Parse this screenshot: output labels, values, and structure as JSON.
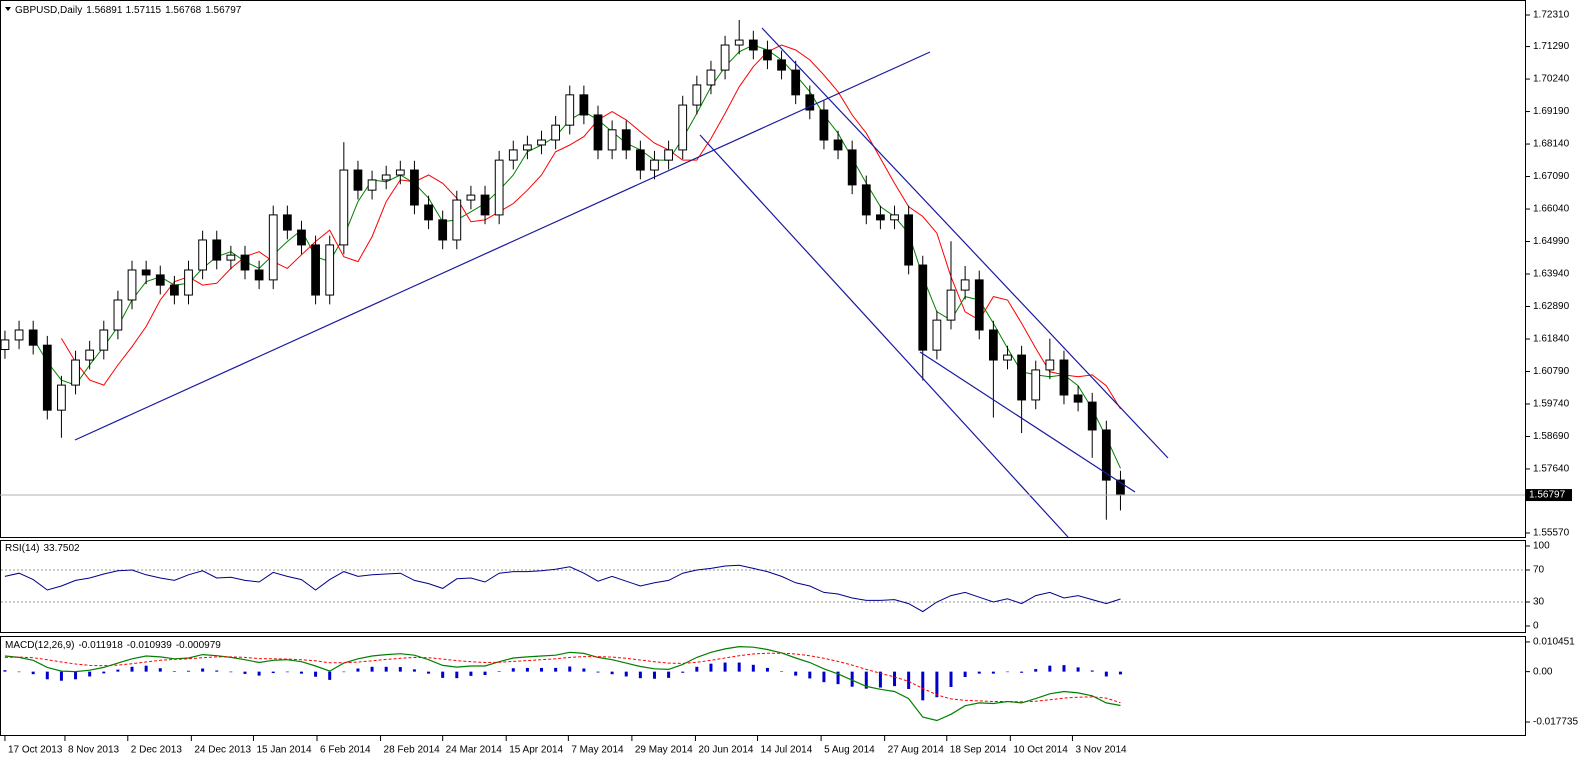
{
  "chart_data": [
    {
      "type": "candlestick",
      "title": "GBPUSD,Daily",
      "quote": [
        1.56891,
        1.57115,
        1.56768,
        1.56797
      ],
      "up_color": "#ffffff",
      "down_color": "#000000",
      "wick_color": "#000000",
      "open": [
        1.615,
        1.6181,
        1.6213,
        1.6164,
        1.5954,
        1.6035,
        1.6116,
        1.6148,
        1.6213,
        1.631,
        1.6407,
        1.6391,
        1.6358,
        1.6326,
        1.6407,
        1.6504,
        1.6439,
        1.6455,
        1.6407,
        1.6375,
        1.6585,
        1.6536,
        1.6488,
        1.6326,
        1.6488,
        1.673,
        1.6665,
        1.6698,
        1.6714,
        1.673,
        1.6617,
        1.6569,
        1.6504,
        1.6633,
        1.6649,
        1.6585,
        1.6762,
        1.6795,
        1.6811,
        1.6827,
        1.6875,
        1.6973,
        1.6908,
        1.6795,
        1.686,
        1.6795,
        1.673,
        1.6762,
        1.6795,
        1.694,
        1.7005,
        1.7053,
        1.7134,
        1.715,
        1.7118,
        1.7086,
        1.7053,
        1.6973,
        1.6924,
        1.6827,
        1.6795,
        1.6682,
        1.6585,
        1.6569,
        1.6585,
        1.6423,
        1.6148,
        1.6245,
        1.6342,
        1.6375,
        1.6213,
        1.6116,
        1.6132,
        1.5987,
        1.6084,
        1.6116,
        1.6003,
        1.598,
        1.589,
        1.5728
      ],
      "high": [
        1.6211,
        1.6243,
        1.6243,
        1.6194,
        1.6065,
        1.6146,
        1.6178,
        1.6243,
        1.634,
        1.6437,
        1.6437,
        1.6421,
        1.6388,
        1.6437,
        1.6534,
        1.6534,
        1.6485,
        1.6485,
        1.6437,
        1.6615,
        1.6615,
        1.6566,
        1.6518,
        1.6518,
        1.682,
        1.676,
        1.6728,
        1.6744,
        1.676,
        1.676,
        1.6647,
        1.6599,
        1.6663,
        1.6679,
        1.6679,
        1.6792,
        1.6825,
        1.6841,
        1.6857,
        1.6905,
        1.7003,
        1.7003,
        1.6938,
        1.689,
        1.689,
        1.6825,
        1.6792,
        1.6825,
        1.697,
        1.7035,
        1.7083,
        1.7164,
        1.7215,
        1.718,
        1.7148,
        1.7116,
        1.7083,
        1.7003,
        1.6954,
        1.6857,
        1.6825,
        1.6712,
        1.6615,
        1.6615,
        1.6615,
        1.6453,
        1.6275,
        1.65,
        1.642,
        1.6405,
        1.6243,
        1.6162,
        1.6162,
        1.6114,
        1.6185,
        1.6146,
        1.6033,
        1.601,
        1.592,
        1.5758
      ],
      "low": [
        1.612,
        1.6151,
        1.6134,
        1.5924,
        1.5865,
        1.6005,
        1.6086,
        1.6118,
        1.6183,
        1.628,
        1.6361,
        1.6328,
        1.6296,
        1.6296,
        1.6377,
        1.6409,
        1.6409,
        1.6377,
        1.6345,
        1.6345,
        1.6506,
        1.6458,
        1.6296,
        1.6296,
        1.6458,
        1.6635,
        1.6635,
        1.6668,
        1.6684,
        1.6587,
        1.6539,
        1.6474,
        1.6474,
        1.6603,
        1.6555,
        1.6555,
        1.6732,
        1.6765,
        1.6781,
        1.6797,
        1.6845,
        1.6878,
        1.6765,
        1.6765,
        1.6765,
        1.67,
        1.67,
        1.6732,
        1.6765,
        1.691,
        1.6975,
        1.7023,
        1.7104,
        1.7088,
        1.7056,
        1.7023,
        1.6943,
        1.6894,
        1.6797,
        1.6765,
        1.6652,
        1.6555,
        1.6539,
        1.6539,
        1.6393,
        1.605,
        1.6118,
        1.6215,
        1.6312,
        1.6183,
        1.593,
        1.6086,
        1.588,
        1.5957,
        1.6054,
        1.5973,
        1.595,
        1.58,
        1.56,
        1.563
      ],
      "close": [
        1.6181,
        1.6213,
        1.6164,
        1.5954,
        1.6035,
        1.6116,
        1.6148,
        1.6213,
        1.631,
        1.6407,
        1.6391,
        1.6358,
        1.6326,
        1.6407,
        1.6504,
        1.6439,
        1.6455,
        1.6407,
        1.6375,
        1.6585,
        1.6536,
        1.6488,
        1.6326,
        1.6488,
        1.673,
        1.6665,
        1.6698,
        1.6714,
        1.673,
        1.6617,
        1.6569,
        1.6504,
        1.6633,
        1.6649,
        1.6585,
        1.6762,
        1.6795,
        1.6811,
        1.6827,
        1.6875,
        1.6973,
        1.6908,
        1.6795,
        1.686,
        1.6795,
        1.673,
        1.6762,
        1.6795,
        1.694,
        1.7005,
        1.7053,
        1.7134,
        1.715,
        1.7118,
        1.7086,
        1.7053,
        1.6973,
        1.6924,
        1.6827,
        1.6795,
        1.6682,
        1.6585,
        1.6569,
        1.6585,
        1.6423,
        1.6148,
        1.6245,
        1.6342,
        1.6375,
        1.6213,
        1.6116,
        1.6132,
        1.5987,
        1.6084,
        1.6116,
        1.6003,
        1.598,
        1.589,
        1.5728,
        1.56797
      ],
      "lines": [
        {
          "color": "#008000",
          "values": [
            null,
            null,
            1.6186,
            1.611,
            1.6051,
            1.6035,
            1.61,
            1.6159,
            1.6224,
            1.631,
            1.6369,
            1.6385,
            1.6358,
            1.6364,
            1.6412,
            1.645,
            1.6466,
            1.6434,
            1.6412,
            1.6456,
            1.6499,
            1.6536,
            1.645,
            1.6434,
            1.6515,
            1.6628,
            1.6698,
            1.6692,
            1.6714,
            1.6687,
            1.6639,
            1.6563,
            1.6569,
            1.6595,
            1.6622,
            1.6665,
            1.6714,
            1.6789,
            1.6811,
            1.6838,
            1.6892,
            1.6919,
            1.6892,
            1.6854,
            1.6817,
            1.6795,
            1.6762,
            1.6762,
            1.6832,
            1.6913,
            1.6999,
            1.7064,
            1.7112,
            1.7134,
            1.7118,
            1.7086,
            1.7037,
            1.6983,
            1.6908,
            1.6849,
            1.6768,
            1.6687,
            1.6612,
            1.658,
            1.6526,
            1.6385,
            1.6272,
            1.6245,
            1.6321,
            1.631,
            1.6235,
            1.6154,
            1.6078,
            1.6068,
            1.6062,
            1.6068,
            1.6033,
            1.5958,
            1.5866,
            1.5766
          ]
        },
        {
          "color": "#ff0000",
          "values": [
            null,
            null,
            null,
            null,
            1.6186,
            1.611,
            1.6051,
            1.6035,
            1.61,
            1.6159,
            1.6224,
            1.631,
            1.6369,
            1.6385,
            1.6358,
            1.6364,
            1.6412,
            1.645,
            1.6466,
            1.6434,
            1.6412,
            1.6456,
            1.6499,
            1.6536,
            1.645,
            1.6434,
            1.6515,
            1.6628,
            1.6698,
            1.6692,
            1.6714,
            1.6687,
            1.6639,
            1.6563,
            1.6569,
            1.6595,
            1.6622,
            1.6665,
            1.6714,
            1.6789,
            1.6811,
            1.6838,
            1.6892,
            1.6919,
            1.6892,
            1.6854,
            1.6817,
            1.6795,
            1.6762,
            1.6762,
            1.6832,
            1.6913,
            1.6999,
            1.7064,
            1.7112,
            1.7134,
            1.7118,
            1.7086,
            1.7037,
            1.6983,
            1.6908,
            1.6849,
            1.6768,
            1.6687,
            1.6612,
            1.658,
            1.6526,
            1.6385,
            1.6272,
            1.6245,
            1.6321,
            1.631,
            1.6235,
            1.6154,
            1.6078,
            1.6068,
            1.6062,
            1.6068,
            1.6033,
            1.5958
          ]
        }
      ],
      "xlim": [
        -0.35,
        107.65
      ],
      "xticks": [
        {
          "value": 0,
          "label": "17 Oct 2013"
        },
        {
          "value": 4.25,
          "label": "8 Nov 2013"
        },
        {
          "value": 8.7,
          "label": "2 Dec 2013"
        },
        {
          "value": 13.2,
          "label": "24 Dec 2013"
        },
        {
          "value": 17.6,
          "label": "15 Jan 2014"
        },
        {
          "value": 22.1,
          "label": "6 Feb 2014"
        },
        {
          "value": 26.6,
          "label": "28 Feb 2014"
        },
        {
          "value": 31.0,
          "label": "24 Mar 2014"
        },
        {
          "value": 35.5,
          "label": "15 Apr 2014"
        },
        {
          "value": 39.9,
          "label": "7 May 2014"
        },
        {
          "value": 44.4,
          "label": "29 May 2014"
        },
        {
          "value": 48.9,
          "label": "20 Jun 2014"
        },
        {
          "value": 53.3,
          "label": "14 Jul 2014"
        },
        {
          "value": 57.8,
          "label": "5 Aug 2014"
        },
        {
          "value": 62.3,
          "label": "27 Aug 2014"
        },
        {
          "value": 66.7,
          "label": "18 Sep 2014"
        },
        {
          "value": 71.2,
          "label": "10 Oct 2014"
        },
        {
          "value": 75.6,
          "label": "3 Nov 2014"
        }
      ],
      "ylim": [
        1.55441,
        1.72795
      ],
      "yticks": [
        {
          "value": 1.7231,
          "label": "1.72310"
        },
        {
          "value": 1.7129,
          "label": "1.71290"
        },
        {
          "value": 1.7024,
          "label": "1.70240"
        },
        {
          "value": 1.6919,
          "label": "1.69190"
        },
        {
          "value": 1.6814,
          "label": "1.68140"
        },
        {
          "value": 1.6709,
          "label": "1.67090"
        },
        {
          "value": 1.6604,
          "label": "1.66040"
        },
        {
          "value": 1.6499,
          "label": "1.64990"
        },
        {
          "value": 1.6394,
          "label": "1.63940"
        },
        {
          "value": 1.6289,
          "label": "1.62890"
        },
        {
          "value": 1.6184,
          "label": "1.61840"
        },
        {
          "value": 1.6079,
          "label": "1.60790"
        },
        {
          "value": 1.5974,
          "label": "1.59740"
        },
        {
          "value": 1.5869,
          "label": "1.58690"
        },
        {
          "value": 1.5764,
          "label": "1.57640"
        },
        {
          "value": 1.5557,
          "label": "1.55570"
        }
      ]
    },
    {
      "type": "line",
      "title": "RSI(14)",
      "color": "#00008b",
      "values": [
        62,
        66,
        58,
        45,
        50,
        57,
        60,
        65,
        69,
        70,
        64,
        60,
        57,
        64,
        69,
        60,
        61,
        57,
        55,
        67,
        62,
        58,
        45,
        58,
        68,
        62,
        64,
        65,
        66,
        57,
        53,
        47,
        59,
        60,
        55,
        66,
        68,
        68,
        69,
        71,
        74,
        66,
        56,
        62,
        56,
        50,
        54,
        57,
        66,
        70,
        72,
        75,
        76,
        72,
        68,
        62,
        54,
        50,
        42,
        40,
        35,
        32,
        32,
        33,
        28,
        18,
        30,
        38,
        42,
        36,
        30,
        34,
        28,
        38,
        42,
        35,
        38,
        33,
        28,
        33.7502
      ],
      "ylim": [
        -7.5,
        107.5
      ],
      "yticks": [
        100,
        70,
        30,
        0
      ],
      "levels": [
        70,
        30
      ]
    },
    {
      "type": "macd",
      "title": "MACD(12,26,9)",
      "macd": {
        "color": "#008000",
        "values": [
          0.0055,
          0.005,
          0.004,
          0.0015,
          0.0002,
          0.0,
          0.0005,
          0.0015,
          0.003,
          0.0045,
          0.0055,
          0.0052,
          0.0045,
          0.0048,
          0.006,
          0.0056,
          0.005,
          0.0042,
          0.0032,
          0.004,
          0.0042,
          0.0035,
          0.002,
          0.0002,
          0.003,
          0.0045,
          0.0055,
          0.006,
          0.0063,
          0.0058,
          0.0042,
          0.0022,
          0.0016,
          0.002,
          0.002,
          0.0035,
          0.0048,
          0.0052,
          0.0055,
          0.0058,
          0.0068,
          0.0064,
          0.005,
          0.0042,
          0.003,
          0.0018,
          0.001,
          0.0008,
          0.0025,
          0.005,
          0.0068,
          0.008,
          0.0088,
          0.0086,
          0.0078,
          0.0066,
          0.0048,
          0.0032,
          0.001,
          -0.0008,
          -0.003,
          -0.0052,
          -0.0062,
          -0.007,
          -0.0095,
          -0.016,
          -0.0172,
          -0.015,
          -0.012,
          -0.011,
          -0.0112,
          -0.0105,
          -0.011,
          -0.0095,
          -0.0078,
          -0.007,
          -0.0075,
          -0.0085,
          -0.011,
          -0.011918
        ]
      },
      "signal": {
        "color": "#ff0000",
        "values": [
          0.005,
          0.0051,
          0.0049,
          0.0042,
          0.0034,
          0.0027,
          0.0022,
          0.0021,
          0.0023,
          0.0028,
          0.0034,
          0.004,
          0.0043,
          0.0045,
          0.0049,
          0.0052,
          0.0052,
          0.005,
          0.0046,
          0.0045,
          0.0044,
          0.0042,
          0.0038,
          0.0031,
          0.0031,
          0.0034,
          0.0038,
          0.0043,
          0.0047,
          0.005,
          0.0049,
          0.0044,
          0.0039,
          0.0035,
          0.0032,
          0.0033,
          0.0036,
          0.0039,
          0.0042,
          0.0045,
          0.005,
          0.0053,
          0.0053,
          0.0051,
          0.0047,
          0.0041,
          0.0035,
          0.003,
          0.0029,
          0.0033,
          0.004,
          0.0048,
          0.0056,
          0.0062,
          0.0065,
          0.0065,
          0.0062,
          0.0056,
          0.0047,
          0.0036,
          0.0023,
          0.0008,
          -0.0006,
          -0.0019,
          -0.0034,
          -0.0059,
          -0.0082,
          -0.0096,
          -0.0101,
          -0.0103,
          -0.0105,
          -0.0105,
          -0.0106,
          -0.0104,
          -0.0099,
          -0.0093,
          -0.009,
          -0.0089,
          -0.0093,
          -0.010939
        ]
      },
      "histogram": {
        "color": "#0000cd",
        "values": [
          0.0005,
          -0.0001,
          -0.0009,
          -0.0027,
          -0.0032,
          -0.0027,
          -0.0017,
          -0.0006,
          0.0007,
          0.0017,
          0.0021,
          0.0012,
          0.0002,
          0.0003,
          0.0011,
          0.0004,
          -0.0002,
          -0.0008,
          -0.0014,
          -0.0005,
          -0.0002,
          -0.0007,
          -0.0018,
          -0.0029,
          -0.0001,
          0.0011,
          0.0017,
          0.0017,
          0.0016,
          0.0008,
          -0.0007,
          -0.0022,
          -0.0023,
          -0.0015,
          -0.0012,
          0.0002,
          0.0012,
          0.0013,
          0.0013,
          0.0013,
          0.0018,
          0.0011,
          -0.0003,
          -0.0009,
          -0.0017,
          -0.0023,
          -0.0025,
          -0.0022,
          -0.0004,
          0.0017,
          0.0028,
          0.0032,
          0.0032,
          0.0024,
          0.0013,
          0.0001,
          -0.0014,
          -0.0024,
          -0.0037,
          -0.0044,
          -0.0053,
          -0.006,
          -0.0056,
          -0.0051,
          -0.0061,
          -0.0101,
          -0.009,
          -0.0054,
          -0.0019,
          -0.0007,
          -0.0007,
          0,
          -0.0004,
          0.0009,
          0.0021,
          0.0023,
          0.0015,
          0.0004,
          -0.0017,
          -0.000979
        ]
      },
      "ylim": [
        -0.0223,
        0.01254
      ],
      "yticks": [
        0.010451,
        {
          "value": 0,
          "label": "0.00"
        },
        -0.017735
      ]
    }
  ]
}
